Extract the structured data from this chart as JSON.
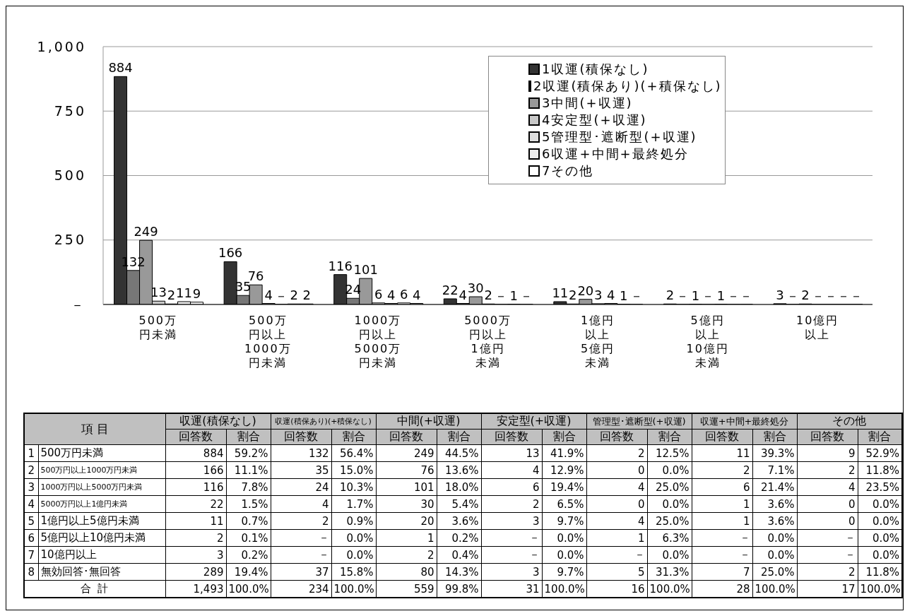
{
  "chart_data": [
    {
      "type": "bar",
      "categories": [
        "500万円未満",
        "500万円以上1000万円未満",
        "1000万円以上5000万円未満",
        "5000万円以上1億円未満",
        "1億円以上5億円未満",
        "5億円以上10億円未満",
        "10億円以上"
      ],
      "series": [
        {
          "name": "1収運(積保なし)",
          "color": "#333333",
          "values": [
            884,
            166,
            116,
            22,
            11,
            2,
            3
          ],
          "value_labels": [
            "884",
            "166",
            "116",
            "22",
            "11",
            "2",
            "3"
          ]
        },
        {
          "name": "2収運(積保あり)(+積保なし)",
          "color": "#777777",
          "values": [
            132,
            35,
            24,
            4,
            2,
            0,
            0
          ],
          "value_labels": [
            "132",
            "35",
            "24",
            "4",
            "2",
            "－",
            "－"
          ]
        },
        {
          "name": "3中間(+収運)",
          "color": "#999999",
          "values": [
            249,
            76,
            101,
            30,
            20,
            1,
            2
          ],
          "value_labels": [
            "249",
            "76",
            "101",
            "30",
            "20",
            "1",
            "2"
          ]
        },
        {
          "name": "4安定型(+収運)",
          "color": "#c8c8c8",
          "values": [
            13,
            4,
            6,
            2,
            3,
            0,
            0
          ],
          "value_labels": [
            "13",
            "4",
            "6",
            "2",
            "3",
            "－",
            "－"
          ]
        },
        {
          "name": "5管理型･遮断型(+収運)",
          "color": "#dddddd",
          "values": [
            2,
            0,
            4,
            0,
            4,
            1,
            0
          ],
          "value_labels": [
            "2",
            "－",
            "4",
            "－",
            "4",
            "1",
            "－"
          ]
        },
        {
          "name": "6収運+中間+最終処分",
          "color": "#eeeeee",
          "values": [
            11,
            2,
            6,
            1,
            1,
            0,
            0
          ],
          "value_labels": [
            "11",
            "2",
            "6",
            "1",
            "1",
            "－",
            "－"
          ]
        },
        {
          "name": "7その他",
          "color": "#ffffff",
          "values": [
            9,
            2,
            4,
            0,
            0,
            0,
            0
          ],
          "value_labels": [
            "9",
            "2",
            "4",
            "－",
            "－",
            "－",
            "－"
          ]
        }
      ],
      "ylim": [
        0,
        1000
      ],
      "yticks": [
        {
          "value": 0,
          "label": "－"
        },
        250,
        500,
        750,
        {
          "value": 1000,
          "label": "1,000"
        }
      ],
      "grid": "y",
      "legend": "top right"
    },
    {
      "type": "other",
      "annotations": [
        "項 目",
        "収運(積保なし)",
        "収運(積保あり)(+積保なし)",
        "中間(+収運)",
        "安定型(+収運)",
        "管理型･遮断型(+収運)",
        "収運+中間+最終処分",
        "その他"
      ],
      "categories": [
        "回答数",
        "割合",
        "回答数",
        "割合",
        "回答数",
        "割合",
        "回答数",
        "割合",
        "回答数",
        "割合",
        "回答数",
        "割合",
        "回答数",
        "割合"
      ],
      "y_categories": [
        "1",
        "2",
        "3",
        "4",
        "5",
        "6",
        "7",
        "8",
        null
      ],
      "y2_categories": [
        "500万円未満",
        "500万円以上1000万円未満",
        "1000万円以上5000万円未満",
        "5000万円以上1億円未満",
        "1億円以上5億円未満",
        "5億円以上10億円未満",
        "10億円以上",
        "無効回答･無回答",
        "合 計"
      ],
      "cell_labels": [
        [
          "884",
          "59.2%",
          "132",
          "56.4%",
          "249",
          "44.5%",
          "13",
          "41.9%",
          "2",
          "12.5%",
          "11",
          "39.3%",
          "9",
          "52.9%"
        ],
        [
          "166",
          "11.1%",
          "35",
          "15.0%",
          "76",
          "13.6%",
          "4",
          "12.9%",
          "0",
          "0.0%",
          "2",
          "7.1%",
          "2",
          "11.8%"
        ],
        [
          "116",
          "7.8%",
          "24",
          "10.3%",
          "101",
          "18.0%",
          "6",
          "19.4%",
          "4",
          "25.0%",
          "6",
          "21.4%",
          "4",
          "23.5%"
        ],
        [
          "22",
          "1.5%",
          "4",
          "1.7%",
          "30",
          "5.4%",
          "2",
          "6.5%",
          "0",
          "0.0%",
          "1",
          "3.6%",
          "0",
          "0.0%"
        ],
        [
          "11",
          "0.7%",
          "2",
          "0.9%",
          "20",
          "3.6%",
          "3",
          "9.7%",
          "4",
          "25.0%",
          "1",
          "3.6%",
          "0",
          "0.0%"
        ],
        [
          "2",
          "0.1%",
          "－",
          "0.0%",
          "1",
          "0.2%",
          "－",
          "0.0%",
          "1",
          "6.3%",
          "－",
          "0.0%",
          "－",
          "0.0%"
        ],
        [
          "3",
          "0.2%",
          "－",
          "0.0%",
          "2",
          "0.4%",
          "－",
          "0.0%",
          "－",
          "0.0%",
          "－",
          "0.0%",
          "－",
          "0.0%"
        ],
        [
          "289",
          "19.4%",
          "37",
          "15.8%",
          "80",
          "14.3%",
          "3",
          "9.7%",
          "5",
          "31.3%",
          "7",
          "25.0%",
          "2",
          "11.8%"
        ],
        [
          "1,493",
          "100.0%",
          "234",
          "100.0%",
          "559",
          "99.8%",
          "31",
          "100.0%",
          "16",
          "100.0%",
          "28",
          "100.0%",
          "17",
          "100.0%"
        ]
      ]
    }
  ]
}
